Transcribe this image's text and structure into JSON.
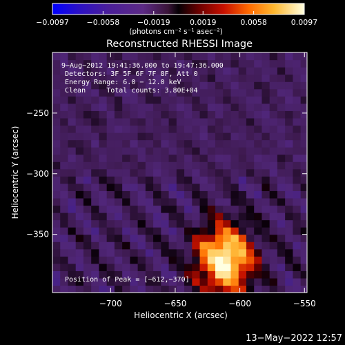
{
  "chart_data": {
    "type": "heatmap",
    "title": "Reconstructed RHESSI Image",
    "xlabel": "Heliocentric X (arcsec)",
    "ylabel": "Heliocentric Y (arcsec)",
    "xlim": [
      -745,
      -548
    ],
    "ylim": [
      -398,
      -200
    ],
    "xticks": [
      -700,
      -650,
      -600,
      -550
    ],
    "xtick_labels": [
      "−700",
      "−650",
      "−600",
      "−550"
    ],
    "yticks": [
      -250,
      -300,
      -350
    ],
    "ytick_labels": [
      "−250",
      "−300",
      "−350"
    ],
    "colorbar": {
      "min": -0.0097,
      "max": 0.0097,
      "ticks": [
        -0.0097,
        -0.0058,
        -0.0019,
        0.0019,
        0.0058,
        0.0097
      ],
      "tick_labels": [
        "−0.0097",
        "−0.0058",
        "−0.0019",
        "0.0019",
        "0.0058",
        "0.0097"
      ],
      "unit_label": "(photons cm⁻² s⁻¹ asec⁻²)"
    },
    "annotations": [
      " 9−Aug−2012 19:41:36.000 to 19:47:36.000",
      "Detectors: 3F 5F 6F 7F 8F, Att 0",
      "Energy Range: 6.0 − 12.0 keV",
      "Clean     Total counts: 3.80E+04"
    ],
    "peak_label": "Position of Peak = [−612,−370]",
    "peak": [
      -612,
      -370
    ],
    "colors": {
      "stops": [
        "#0000ff",
        "#3a1aa0",
        "#5c2a85",
        "#3a1438",
        "#000000",
        "#8a0000",
        "#e82000",
        "#ff8c00",
        "#ffd060",
        "#ffffe8"
      ]
    }
  },
  "footer_timestamp": "13−May−2022 12:57"
}
